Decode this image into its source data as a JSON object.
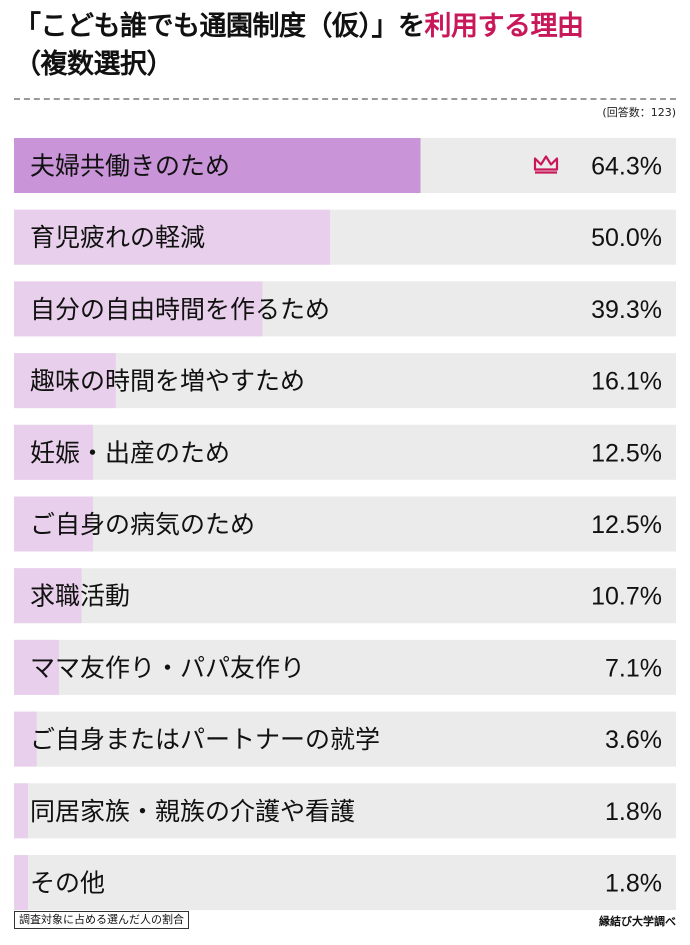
{
  "header": {
    "title_part1": "「こども誰でも通園制度（仮）」を",
    "title_part2": "利用する理由",
    "title_line2": "（複数選択）",
    "respondents": "(回答数：123)"
  },
  "footer": {
    "note": "調査対象に占める選んだ人の割合",
    "source": "縁結び大学調べ"
  },
  "colors": {
    "accent": "#c9185a",
    "top_bar": "#c995d8",
    "other_bar": "#e8cfeb",
    "track": "#ebebeb"
  },
  "chart_data": {
    "type": "bar",
    "orientation": "horizontal",
    "unit": "%",
    "xlim": [
      0,
      100
    ],
    "highlight_icon": "crown-icon",
    "categories": [
      "夫婦共働きのため",
      "育児疲れの軽減",
      "自分の自由時間を作るため",
      "趣味の時間を増やすため",
      "妊娠・出産のため",
      "ご自身の病気のため",
      "求職活動",
      "ママ友作り・パパ友作り",
      "ご自身またはパートナーの就学",
      "同居家族・親族の介護や看護",
      "その他"
    ],
    "values": [
      64.3,
      50.0,
      39.3,
      16.1,
      12.5,
      12.5,
      10.7,
      7.1,
      3.6,
      1.8,
      1.8
    ],
    "value_labels": [
      "64.3%",
      "50.0%",
      "39.3%",
      "16.1%",
      "12.5%",
      "12.5%",
      "10.7%",
      "7.1%",
      "3.6%",
      "1.8%",
      "1.8%"
    ]
  }
}
